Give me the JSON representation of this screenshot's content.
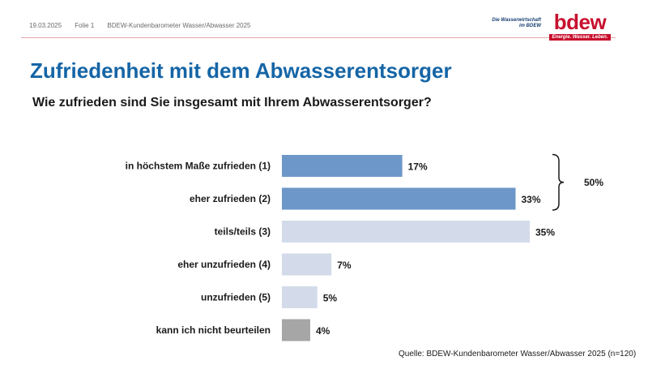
{
  "header": {
    "date": "19.03.2025",
    "slide": "Folie 1",
    "subtitle": "BDEW-Kundenbarometer Wasser/Abwasser 2025",
    "logo_tagline_1": "Die Wasserwirtschaft",
    "logo_tagline_2": "im BDEW",
    "logo_text": "bdew",
    "logo_claim": "Energie. Wasser. Leben."
  },
  "title": "Zufriedenheit mit dem Abwasserentsorger",
  "question": "Wie zufrieden sind Sie insgesamt mit Ihrem Abwasserentsorger?",
  "source": "Quelle: BDEW-Kundenbarometer Wasser/Abwasser 2025 (n=120)",
  "chart_data": {
    "type": "bar",
    "orientation": "horizontal",
    "categories": [
      "in höchstem Maße zufrieden (1)",
      "eher zufrieden (2)",
      "teils/teils (3)",
      "eher unzufrieden (4)",
      "unzufrieden (5)",
      "kann ich nicht beurteilen"
    ],
    "values": [
      17,
      33,
      35,
      7,
      5,
      4
    ],
    "value_labels": [
      "17%",
      "33%",
      "35%",
      "7%",
      "5%",
      "4%"
    ],
    "colors": [
      "#6d97c9",
      "#6d97c9",
      "#d3dbea",
      "#d3dbea",
      "#d3dbea",
      "#a6a6a6"
    ],
    "bracket": {
      "from_index": 0,
      "to_index": 1,
      "label": "50%"
    },
    "xlim": [
      0,
      35
    ],
    "grid": false,
    "legend": false
  }
}
